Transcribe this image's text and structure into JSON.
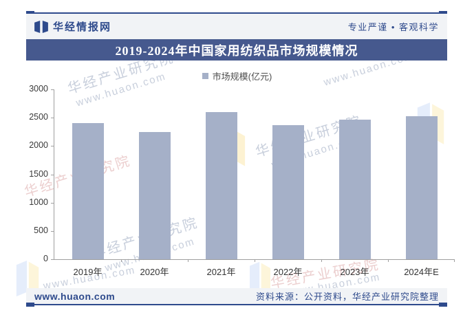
{
  "header": {
    "logo_text": "华经情报网",
    "slogan": "专业严谨 • 客观科学"
  },
  "title": "2019-2024年中国家用纺织品市场规模情况",
  "legend": {
    "label": "市场规模(亿元)"
  },
  "chart_data": {
    "type": "bar",
    "title": "2019-2024年中国家用纺织品市场规模情况",
    "categories": [
      "2019年",
      "2020年",
      "2021年",
      "2022年",
      "2023年",
      "2024年E"
    ],
    "series": [
      {
        "name": "市场规模(亿元)",
        "values": [
          2400,
          2250,
          2600,
          2370,
          2460,
          2530
        ]
      }
    ],
    "xlabel": "",
    "ylabel": "",
    "ylim": [
      0,
      3000
    ],
    "yticks": [
      0,
      500,
      1000,
      1500,
      2000,
      2500,
      3000
    ],
    "grid": false,
    "legend_position": "top-center",
    "bar_color": "#a5b0c8"
  },
  "footer": {
    "website": "www.huaon.com",
    "source": "资料来源：公开资料，华经产业研究院整理"
  },
  "watermarks": {
    "org": "华经产业研究院",
    "site": "www.huaon.com"
  },
  "colors": {
    "brand_blue": "#2e4a8c",
    "title_bar_bg": "#46598e",
    "band_bg": "#f1f3f6",
    "bar_fill": "#a5b0c8"
  }
}
